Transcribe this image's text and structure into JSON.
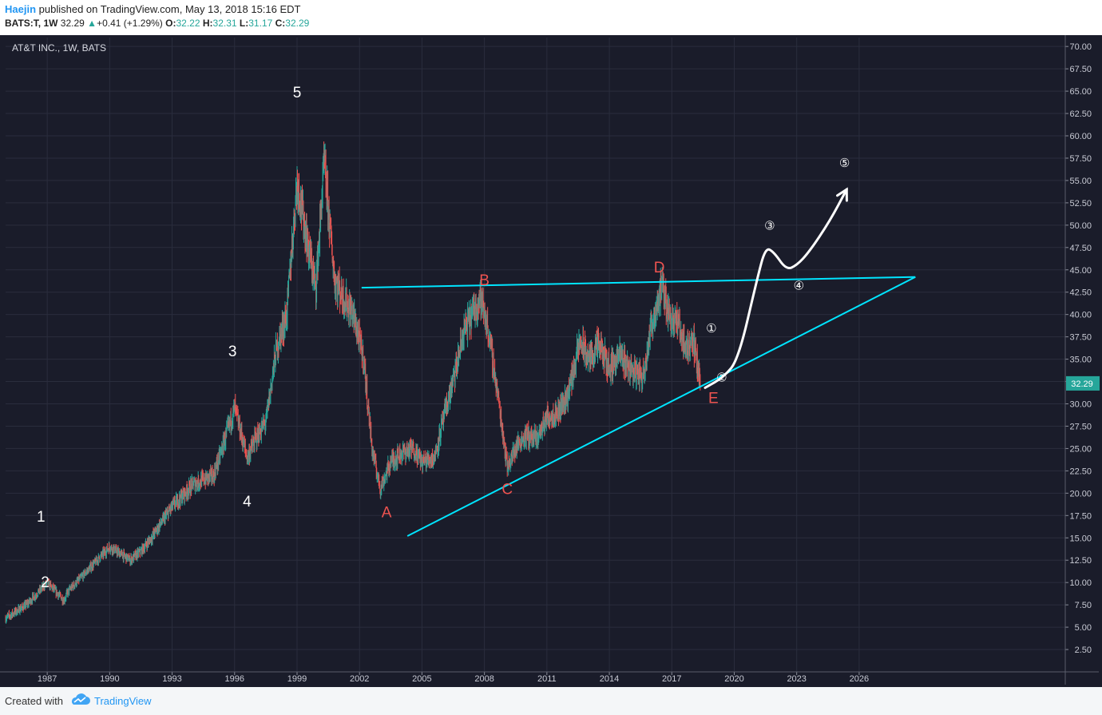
{
  "header": {
    "author": "Haejin",
    "published_text": "published on TradingView.com, May 13, 2018 15:16 EDT",
    "symbol": "BATS:T, 1W",
    "last": "32.29",
    "change_arrow": "▲",
    "change": "+0.41 (+1.29%)",
    "o_label": "O:",
    "o_value": "32.22",
    "h_label": "H:",
    "h_value": "32.31",
    "l_label": "L:",
    "l_value": "31.17",
    "c_label": "C:",
    "c_value": "32.29"
  },
  "footer": {
    "created_with": "Created with",
    "brand": "TradingView",
    "brand_icon": "tradingview-cloud-icon"
  },
  "colors": {
    "background": "#1a1c2a",
    "grid": "#2a2d3d",
    "up_candle": "#26a69a",
    "down_candle": "#ef5350",
    "trendline": "#00e5ff",
    "projection": "#ffffff",
    "wave_label_white": "#ffffff",
    "wave_label_red": "#ef5350",
    "last_price_tag": "#26a69a"
  },
  "chart_data": {
    "type": "line",
    "title": "AT&T INC., 1W, BATS",
    "xlabel": "",
    "ylabel": "",
    "x_ticks": [
      "1987",
      "1990",
      "1993",
      "1996",
      "1999",
      "2002",
      "2005",
      "2008",
      "2011",
      "2014",
      "2017",
      "2020",
      "2023",
      "2026"
    ],
    "y_ticks": [
      "2.50",
      "5.00",
      "7.50",
      "10.00",
      "12.50",
      "15.00",
      "17.50",
      "20.00",
      "22.50",
      "25.00",
      "27.50",
      "30.00",
      "32.50",
      "35.00",
      "37.50",
      "40.00",
      "42.50",
      "45.00",
      "47.50",
      "50.00",
      "52.50",
      "55.00",
      "57.50",
      "60.00",
      "62.50",
      "65.00",
      "67.50",
      "70.00"
    ],
    "xlim": [
      1985.0,
      2035.9
    ],
    "ylim": [
      0.0,
      71.0
    ],
    "grid": true,
    "last_price_label": "32.29",
    "last_price": 32.29,
    "series": [
      {
        "name": "",
        "kind": "weekly-candles",
        "x": [
          1985.0,
          1986.0,
          1987.0,
          1987.8,
          1988.0,
          1989.0,
          1990.0,
          1991.0,
          1991.5,
          1992.0,
          1993.0,
          1994.0,
          1995.0,
          1996.0,
          1996.6,
          1997.0,
          1997.5,
          1998.0,
          1998.5,
          1999.0,
          1999.5,
          1999.9,
          2000.3,
          2000.8,
          2001.2,
          2001.7,
          2002.2,
          2002.6,
          2003.0,
          2003.5,
          2004.0,
          2004.6,
          2005.0,
          2005.6,
          2006.0,
          2006.6,
          2007.0,
          2007.8,
          2008.2,
          2008.7,
          2009.1,
          2009.6,
          2010.0,
          2010.5,
          2011.0,
          2011.5,
          2012.0,
          2012.6,
          2013.0,
          2013.5,
          2014.0,
          2014.5,
          2015.0,
          2015.6,
          2016.0,
          2016.5,
          2016.9,
          2017.3,
          2017.7,
          2018.0,
          2018.37
        ],
        "y": [
          6.0,
          7.5,
          10.0,
          8.0,
          9.0,
          11.5,
          14.0,
          12.5,
          13.5,
          15.0,
          18.5,
          21.0,
          22.0,
          29.5,
          24.0,
          26.0,
          28.0,
          36.0,
          40.0,
          55.0,
          48.0,
          43.0,
          57.0,
          44.0,
          42.0,
          40.0,
          35.0,
          25.0,
          20.5,
          23.5,
          24.5,
          25.0,
          23.5,
          24.0,
          28.0,
          33.5,
          38.0,
          42.0,
          38.0,
          30.0,
          23.0,
          25.5,
          26.5,
          26.0,
          28.5,
          29.0,
          31.0,
          37.0,
          35.0,
          36.5,
          34.0,
          35.5,
          34.0,
          33.0,
          38.5,
          43.0,
          40.0,
          39.0,
          36.0,
          37.5,
          32.29
        ]
      },
      {
        "name": "",
        "kind": "projection",
        "x": [
          2018.6,
          2019.5,
          2020.2,
          2021.1,
          2021.5,
          2021.9,
          2022.5,
          2023.0,
          2023.6,
          2024.6,
          2025.4
        ],
        "y": [
          31.8,
          33.0,
          35.0,
          44.0,
          47.5,
          47.0,
          45.0,
          45.5,
          47.0,
          50.5,
          54.0
        ]
      },
      {
        "name": "",
        "kind": "trendline",
        "x": [
          2002.1,
          2028.7
        ],
        "y": [
          43.0,
          44.2
        ]
      },
      {
        "name": "",
        "kind": "trendline",
        "x": [
          2004.3,
          2028.7
        ],
        "y": [
          15.2,
          44.2
        ]
      }
    ],
    "annotations": [
      {
        "text": "1",
        "x": 1986.7,
        "y": 16.8,
        "color": "white"
      },
      {
        "text": "2",
        "x": 1986.9,
        "y": 9.5,
        "color": "white"
      },
      {
        "text": "3",
        "x": 1995.9,
        "y": 35.3,
        "color": "white"
      },
      {
        "text": "4",
        "x": 1996.6,
        "y": 18.5,
        "color": "white"
      },
      {
        "text": "5",
        "x": 1999.0,
        "y": 64.3,
        "color": "white"
      },
      {
        "text": "A",
        "x": 2003.3,
        "y": 17.3,
        "color": "red"
      },
      {
        "text": "B",
        "x": 2008.0,
        "y": 43.3,
        "color": "red"
      },
      {
        "text": "C",
        "x": 2009.1,
        "y": 19.9,
        "color": "red"
      },
      {
        "text": "D",
        "x": 2016.4,
        "y": 44.7,
        "color": "red"
      },
      {
        "text": "E",
        "x": 2019.0,
        "y": 30.1,
        "color": "red"
      },
      {
        "text": "①",
        "x": 2018.9,
        "y": 38.0,
        "color": "white"
      },
      {
        "text": "②",
        "x": 2019.4,
        "y": 32.5,
        "color": "white"
      },
      {
        "text": "③",
        "x": 2021.7,
        "y": 49.5,
        "color": "white"
      },
      {
        "text": "④",
        "x": 2023.1,
        "y": 42.8,
        "color": "white"
      },
      {
        "text": "⑤",
        "x": 2025.3,
        "y": 56.5,
        "color": "white"
      }
    ]
  }
}
